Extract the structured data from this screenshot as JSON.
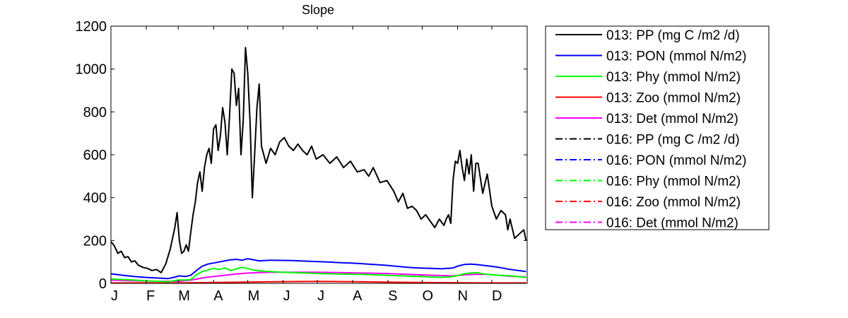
{
  "chart_data": {
    "type": "line",
    "title": "Slope",
    "xlabel": "",
    "ylabel": "",
    "ylim": [
      0,
      1200
    ],
    "yticks": [
      0,
      200,
      400,
      600,
      800,
      1000,
      1200
    ],
    "xlim": [
      0,
      365
    ],
    "xtick_labels": [
      "J",
      "F",
      "M",
      "A",
      "M",
      "J",
      "J",
      "A",
      "S",
      "O",
      "N",
      "D"
    ],
    "grid": false,
    "legend_position": "right outside",
    "series": [
      {
        "name": "013: PP (mg C /m2 /d)",
        "color": "#000000",
        "style": "solid",
        "x": [
          0,
          3,
          6,
          9,
          12,
          15,
          18,
          21,
          24,
          28,
          32,
          36,
          40,
          44,
          48,
          52,
          56,
          58,
          60,
          62,
          64,
          66,
          68,
          70,
          72,
          74,
          76,
          78,
          80,
          82,
          84,
          86,
          88,
          90,
          92,
          94,
          96,
          98,
          100,
          102,
          104,
          106,
          108,
          110,
          112,
          114,
          116,
          118,
          120,
          122,
          124,
          126,
          128,
          130,
          132,
          136,
          140,
          144,
          148,
          152,
          156,
          160,
          164,
          168,
          172,
          176,
          180,
          186,
          192,
          198,
          204,
          210,
          216,
          222,
          226,
          230,
          236,
          242,
          248,
          252,
          256,
          260,
          264,
          268,
          272,
          276,
          280,
          284,
          288,
          292,
          294,
          296,
          298,
          300,
          302,
          304,
          306,
          308,
          310,
          312,
          314,
          316,
          318,
          320,
          322,
          326,
          330,
          334,
          338,
          342,
          346,
          348,
          350,
          354,
          358,
          362,
          364
        ],
        "values": [
          195,
          175,
          140,
          150,
          120,
          125,
          100,
          105,
          85,
          75,
          70,
          60,
          65,
          50,
          90,
          160,
          260,
          330,
          200,
          140,
          150,
          180,
          150,
          240,
          320,
          380,
          470,
          520,
          430,
          540,
          600,
          630,
          560,
          720,
          740,
          620,
          690,
          820,
          750,
          600,
          780,
          1000,
          980,
          830,
          910,
          600,
          760,
          1100,
          980,
          750,
          400,
          600,
          820,
          930,
          640,
          560,
          630,
          600,
          660,
          680,
          640,
          620,
          650,
          620,
          600,
          640,
          580,
          600,
          560,
          590,
          540,
          570,
          520,
          530,
          500,
          540,
          470,
          480,
          430,
          380,
          420,
          350,
          360,
          340,
          300,
          320,
          290,
          260,
          300,
          270,
          300,
          320,
          280,
          480,
          570,
          560,
          620,
          540,
          480,
          580,
          510,
          600,
          430,
          560,
          560,
          420,
          510,
          360,
          300,
          340,
          320,
          250,
          300,
          210,
          230,
          250,
          200
        ],
        "approximate": true
      },
      {
        "name": "013: PON (mmol N/m2)",
        "color": "#0000ff",
        "style": "solid",
        "x": [
          0,
          10,
          20,
          30,
          40,
          50,
          55,
          60,
          65,
          70,
          75,
          80,
          85,
          90,
          95,
          100,
          105,
          110,
          115,
          120,
          125,
          130,
          140,
          150,
          160,
          170,
          180,
          190,
          200,
          210,
          220,
          230,
          240,
          250,
          260,
          270,
          280,
          290,
          295,
          300,
          305,
          310,
          315,
          320,
          325,
          330,
          340,
          350,
          360,
          364
        ],
        "values": [
          45,
          38,
          32,
          28,
          25,
          22,
          28,
          35,
          32,
          38,
          60,
          80,
          90,
          95,
          100,
          105,
          110,
          112,
          108,
          115,
          110,
          105,
          108,
          107,
          106,
          104,
          102,
          100,
          97,
          95,
          92,
          88,
          85,
          80,
          75,
          72,
          70,
          68,
          70,
          72,
          82,
          88,
          90,
          88,
          85,
          82,
          75,
          65,
          58,
          55
        ],
        "approximate": true
      },
      {
        "name": "013: Phy (mmol N/m2)",
        "color": "#00ff00",
        "style": "solid",
        "x": [
          0,
          10,
          20,
          30,
          40,
          50,
          55,
          60,
          65,
          70,
          75,
          80,
          85,
          90,
          95,
          100,
          105,
          110,
          115,
          120,
          125,
          130,
          140,
          150,
          160,
          170,
          180,
          190,
          200,
          210,
          220,
          230,
          240,
          250,
          260,
          270,
          280,
          290,
          300,
          305,
          310,
          315,
          320,
          325,
          330,
          340,
          350,
          360,
          364
        ],
        "values": [
          20,
          18,
          15,
          12,
          10,
          8,
          12,
          16,
          15,
          18,
          40,
          55,
          62,
          70,
          65,
          72,
          60,
          68,
          75,
          70,
          62,
          58,
          55,
          52,
          50,
          48,
          46,
          45,
          44,
          43,
          42,
          40,
          38,
          36,
          34,
          32,
          30,
          28,
          32,
          38,
          45,
          48,
          50,
          46,
          42,
          38,
          35,
          30,
          28
        ],
        "approximate": true
      },
      {
        "name": "013: Zoo (mmol N/m2)",
        "color": "#ff0000",
        "style": "solid",
        "x": [
          0,
          30,
          60,
          90,
          120,
          150,
          180,
          210,
          240,
          270,
          300,
          330,
          364
        ],
        "values": [
          2,
          2,
          2,
          4,
          6,
          8,
          9,
          8,
          6,
          4,
          3,
          2,
          2
        ],
        "approximate": true
      },
      {
        "name": "013: Det (mmol N/m2)",
        "color": "#ff00ff",
        "style": "solid",
        "x": [
          0,
          20,
          40,
          60,
          70,
          80,
          90,
          100,
          110,
          120,
          130,
          140,
          160,
          180,
          200,
          220,
          240,
          260,
          280,
          300,
          310,
          320,
          330,
          340,
          350,
          364
        ],
        "values": [
          15,
          12,
          10,
          10,
          15,
          25,
          32,
          38,
          44,
          48,
          50,
          52,
          52,
          52,
          50,
          48,
          46,
          42,
          38,
          35,
          40,
          42,
          42,
          38,
          33,
          30
        ],
        "approximate": true
      },
      {
        "name": "016: PP (mg C /m2 /d)",
        "color": "#000000",
        "style": "dashdot",
        "x": [],
        "values": []
      },
      {
        "name": "016: PON (mmol N/m2)",
        "color": "#0000ff",
        "style": "dashdot",
        "x": [],
        "values": []
      },
      {
        "name": "016: Phy (mmol N/m2)",
        "color": "#00ff00",
        "style": "dashdot",
        "x": [],
        "values": []
      },
      {
        "name": "016: Zoo (mmol N/m2)",
        "color": "#ff0000",
        "style": "dashdot",
        "x": [],
        "values": []
      },
      {
        "name": "016: Det (mmol N/m2)",
        "color": "#ff00ff",
        "style": "dashdot",
        "x": [],
        "values": []
      }
    ]
  }
}
